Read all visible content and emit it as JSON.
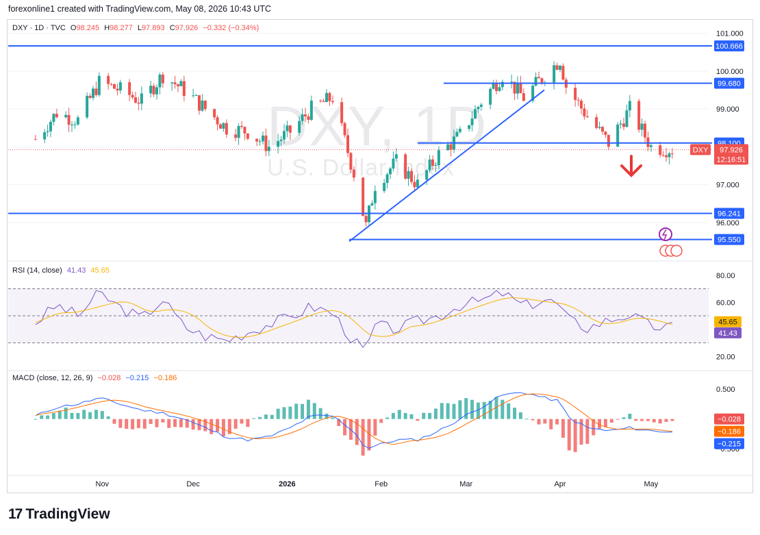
{
  "header": {
    "text": "forexonline1 created with TradingView.com, May 08, 2026 10:43 UTC"
  },
  "legend": {
    "symbol": "DXY · 1D · TVC",
    "o_label": "O",
    "o": "98.245",
    "h_label": "H",
    "h": "98.277",
    "l_label": "L",
    "l": "97.893",
    "c_label": "C",
    "c": "97.926",
    "chg": "−0.332 (−0.34%)"
  },
  "watermark": {
    "line1": "DXY, 1D",
    "line2": "U.S. Dollar Index"
  },
  "price_axis": {
    "ticks": [
      "101.000",
      "100.000",
      "99.000",
      "98.000",
      "97.000",
      "96.000"
    ]
  },
  "price_levels": [
    {
      "value": "100.666"
    },
    {
      "value": "99.680"
    },
    {
      "value": "98.100"
    },
    {
      "value": "96.241"
    },
    {
      "value": "95.550"
    }
  ],
  "last_price": {
    "symbol": "DXY",
    "value": "97.926",
    "countdown": "12:16:51"
  },
  "rsi": {
    "label": "RSI (14, close)",
    "value": "41.43",
    "ma": "45.65",
    "ticks": [
      "80.00",
      "60.00",
      "20.00"
    ]
  },
  "macd": {
    "label": "MACD (close, 12, 26, 9)",
    "hist": "−0.028",
    "macd": "−0.215",
    "signal": "−0.186",
    "ticks": [
      "0.500",
      "−0.500"
    ]
  },
  "time_axis": {
    "labels": [
      "Nov",
      "Dec",
      "2026",
      "Feb",
      "Mar",
      "Apr",
      "May"
    ]
  },
  "brand": {
    "name": "TradingView"
  },
  "colors": {
    "up": "#26a69a",
    "down": "#ef5350",
    "level": "#2962ff",
    "rsi": "#7e57c2",
    "rsi_ma": "#f7b500",
    "macd": "#2962ff",
    "signal": "#ff6d00"
  },
  "chart_data": {
    "type": "candlestick",
    "title": "DXY, 1D",
    "subtitle": "U.S. Dollar Index",
    "close_path": {
      "x": [
        "2025-10-10",
        "2025-10-17",
        "2025-10-24",
        "2025-10-31",
        "2025-11-07",
        "2025-11-14",
        "2025-11-21",
        "2025-11-28",
        "2025-12-05",
        "2025-12-12",
        "2025-12-19",
        "2025-12-26",
        "2026-01-02",
        "2026-01-09",
        "2026-01-16",
        "2026-01-23",
        "2026-01-27",
        "2026-01-30",
        "2026-02-06",
        "2026-02-13",
        "2026-02-20",
        "2026-02-27",
        "2026-03-06",
        "2026-03-13",
        "2026-03-20",
        "2026-03-27",
        "2026-04-01",
        "2026-04-03",
        "2026-04-10",
        "2026-04-17",
        "2026-04-24",
        "2026-05-01",
        "2026-05-08"
      ],
      "y": [
        98.2,
        98.9,
        98.7,
        99.7,
        99.5,
        99.2,
        99.9,
        99.5,
        99.0,
        98.5,
        98.4,
        98.0,
        98.4,
        99.0,
        99.3,
        97.3,
        95.9,
        97.0,
        97.6,
        97.0,
        97.8,
        98.3,
        99.2,
        99.9,
        99.3,
        99.9,
        100.3,
        99.6,
        98.8,
        98.1,
        99.0,
        98.0,
        97.926
      ]
    },
    "levels": [
      100.666,
      99.68,
      98.1,
      96.241,
      95.55
    ],
    "ylim": [
      95.0,
      101.3
    ],
    "rsi_path": [
      45,
      58,
      50,
      67,
      56,
      48,
      62,
      42,
      35,
      32,
      38,
      44,
      49,
      57,
      52,
      31,
      23,
      43,
      40,
      46,
      50,
      58,
      61,
      67,
      57,
      62,
      58,
      48,
      41,
      47,
      51,
      42,
      41.43
    ],
    "macd_path": [
      0.05,
      0.2,
      0.25,
      0.35,
      0.25,
      0.15,
      0.1,
      0.0,
      -0.15,
      -0.3,
      -0.35,
      -0.3,
      -0.15,
      0.05,
      0.05,
      -0.2,
      -0.5,
      -0.45,
      -0.35,
      -0.35,
      -0.2,
      0.0,
      0.2,
      0.4,
      0.45,
      0.35,
      0.3,
      0.05,
      -0.15,
      -0.2,
      -0.15,
      -0.2,
      -0.215
    ]
  }
}
